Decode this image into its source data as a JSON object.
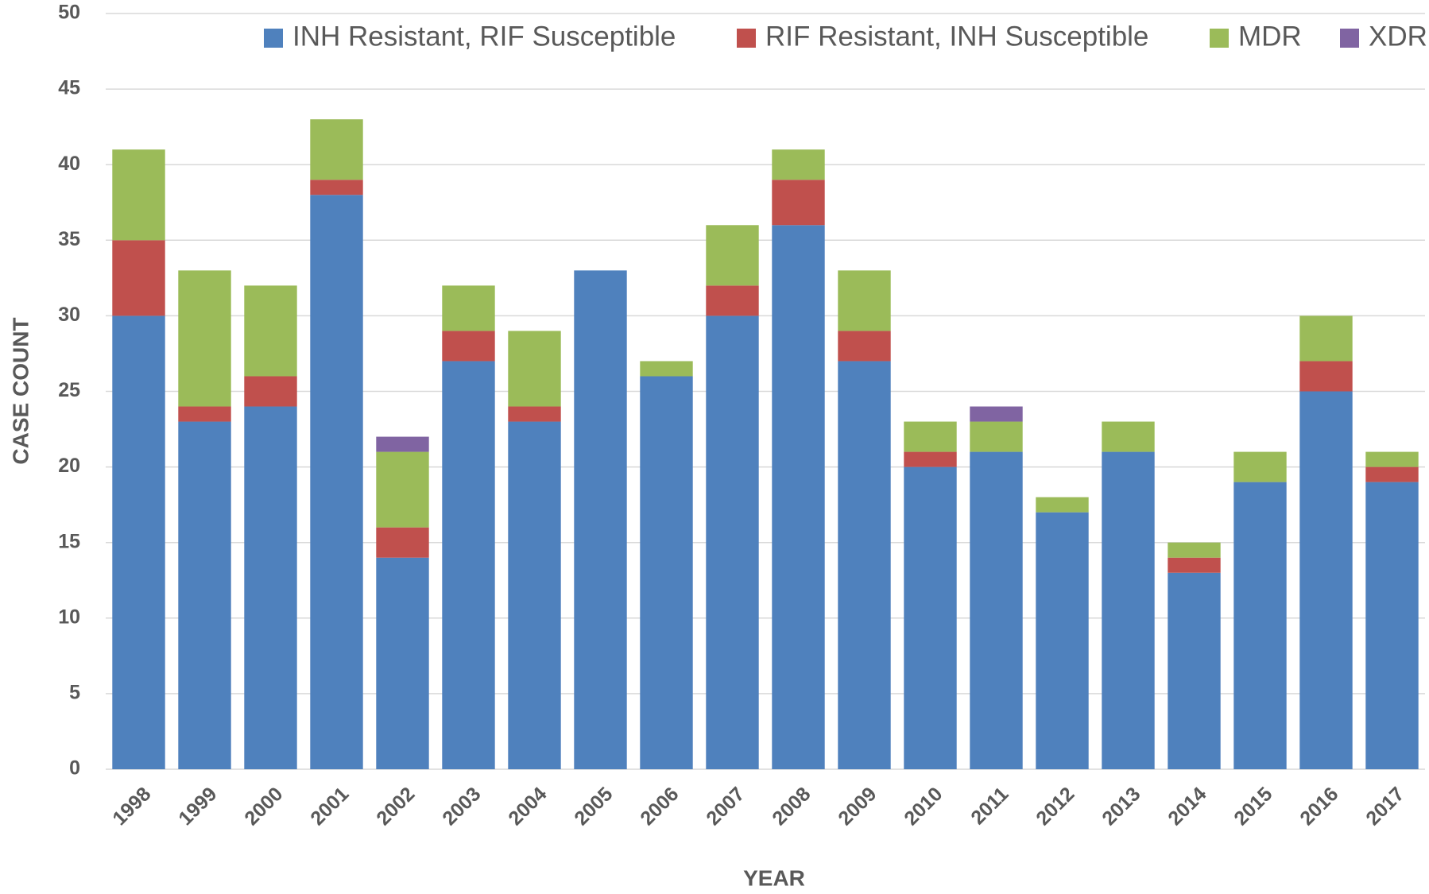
{
  "chart_data": {
    "type": "stacked_bar",
    "y_axis_label": "CASE COUNT",
    "x_axis_label": "YEAR",
    "categories": [
      "1998",
      "1999",
      "2000",
      "2001",
      "2002",
      "2003",
      "2004",
      "2005",
      "2006",
      "2007",
      "2008",
      "2009",
      "2010",
      "2011",
      "2012",
      "2013",
      "2014",
      "2015",
      "2016",
      "2017"
    ],
    "series": [
      {
        "name": "INH Resistant, RIF Susceptible",
        "color": "#4f81bd",
        "values": [
          30,
          23,
          24,
          38,
          14,
          27,
          23,
          33,
          26,
          30,
          36,
          27,
          20,
          21,
          17,
          21,
          13,
          19,
          25,
          19
        ]
      },
      {
        "name": "RIF Resistant, INH Susceptible",
        "color": "#c0504d",
        "values": [
          5,
          1,
          2,
          1,
          2,
          2,
          1,
          0,
          0,
          2,
          3,
          2,
          1,
          0,
          0,
          0,
          1,
          0,
          2,
          1
        ]
      },
      {
        "name": "MDR",
        "color": "#9bbb59",
        "values": [
          6,
          9,
          6,
          4,
          5,
          3,
          5,
          0,
          1,
          4,
          2,
          4,
          2,
          2,
          1,
          2,
          1,
          2,
          3,
          1
        ]
      },
      {
        "name": "XDR",
        "color": "#8064a2",
        "values": [
          0,
          0,
          0,
          0,
          1,
          0,
          0,
          0,
          0,
          0,
          0,
          0,
          0,
          1,
          0,
          0,
          0,
          0,
          0,
          0
        ]
      }
    ],
    "ylim": [
      0,
      50
    ],
    "yticks": [
      0,
      5,
      10,
      15,
      20,
      25,
      30,
      35,
      40,
      45,
      50
    ],
    "grid": true,
    "legend": "top"
  }
}
